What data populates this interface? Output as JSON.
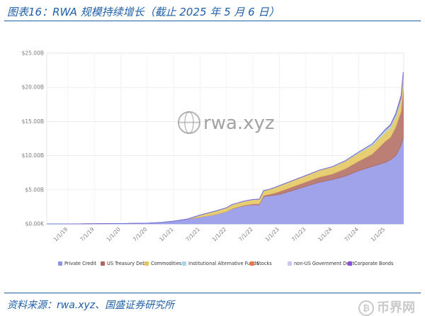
{
  "caption": "图表16：RWA 规模持续增长（截止 2025 年 5 月 6 日）",
  "source": "资料来源：rwa.xyz、国盛证券研究所",
  "watermark": {
    "logo_text": "rwa.xyz",
    "corner_text": "币界网",
    "corner_icon": "bitcoin-icon"
  },
  "colors": {
    "private_credit": "#8f93e6",
    "us_treasury": "#b0685e",
    "commodities": "#e3c45a",
    "institutional_funds": "#a8d7ec",
    "stocks": "#e8794b",
    "non_us_gov": "#c8c8ee",
    "corporate_bonds": "#8a4fd6",
    "caption_blue": "#1f5fa8"
  },
  "chart_data": {
    "type": "area",
    "stacked": true,
    "title": "",
    "xlabel": "",
    "ylabel": "",
    "ylim": [
      0,
      25
    ],
    "y_unit": "B USD",
    "y_ticks": [
      "$0.00K",
      "$5.00B",
      "$10.00B",
      "$15.00B",
      "$20.00B",
      "$25.00B"
    ],
    "y_tick_values": [
      0,
      5,
      10,
      15,
      20,
      25
    ],
    "x_ticks": [
      "1/1/19",
      "7/1/19",
      "1/1/20",
      "7/1/20",
      "1/1/21",
      "7/1/21",
      "1/1/22",
      "7/1/22",
      "1/1/23",
      "7/1/23",
      "1/1/24",
      "7/1/24",
      "1/1/25"
    ],
    "x_tick_values": [
      2019.0,
      2019.5,
      2020.0,
      2020.5,
      2021.0,
      2021.5,
      2022.0,
      2022.5,
      2023.0,
      2023.5,
      2024.0,
      2024.5,
      2025.0
    ],
    "xlim": [
      2018.6,
      2025.35
    ],
    "grid": true,
    "legend_position": "bottom",
    "x": [
      2018.6,
      2019.0,
      2019.5,
      2020.0,
      2020.5,
      2020.75,
      2021.0,
      2021.25,
      2021.5,
      2021.75,
      2022.0,
      2022.1,
      2022.2,
      2022.3,
      2022.4,
      2022.5,
      2022.62,
      2022.7,
      2022.8,
      2022.9,
      2023.0,
      2023.25,
      2023.5,
      2023.75,
      2024.0,
      2024.25,
      2024.5,
      2024.75,
      2025.0,
      2025.1,
      2025.2,
      2025.3,
      2025.34
    ],
    "series": [
      {
        "name": "Private Credit",
        "key": "private_credit",
        "values": [
          0,
          0,
          0.02,
          0.05,
          0.1,
          0.2,
          0.4,
          0.7,
          1.0,
          1.3,
          1.8,
          2.2,
          2.4,
          2.6,
          2.7,
          2.8,
          2.8,
          4.0,
          4.1,
          4.2,
          4.3,
          4.9,
          5.5,
          6.1,
          6.5,
          7.0,
          7.8,
          8.4,
          9.0,
          9.4,
          10.0,
          11.5,
          12.7
        ]
      },
      {
        "name": "US Treasury Debt",
        "key": "us_treasury",
        "values": [
          0,
          0,
          0,
          0,
          0,
          0,
          0,
          0,
          0,
          0,
          0.01,
          0.02,
          0.04,
          0.06,
          0.08,
          0.1,
          0.12,
          0.15,
          0.2,
          0.3,
          0.45,
          0.55,
          0.65,
          0.75,
          0.8,
          1.1,
          1.4,
          1.8,
          3.1,
          3.3,
          4.2,
          5.0,
          7.0
        ]
      },
      {
        "name": "Commodities",
        "key": "commodities",
        "values": [
          0,
          0,
          0,
          0,
          0,
          0,
          0,
          0,
          0.3,
          0.5,
          0.55,
          0.6,
          0.6,
          0.62,
          0.65,
          0.68,
          0.7,
          0.72,
          0.75,
          0.8,
          0.85,
          0.9,
          0.95,
          1.0,
          1.05,
          1.1,
          1.2,
          1.25,
          1.3,
          1.35,
          1.4,
          1.45,
          1.5
        ]
      },
      {
        "name": "Institutional Alternative Funds",
        "key": "institutional_funds",
        "values": [
          0,
          0,
          0,
          0,
          0,
          0,
          0,
          0,
          0,
          0,
          0,
          0,
          0,
          0,
          0,
          0,
          0,
          0,
          0,
          0,
          0,
          0,
          0,
          0,
          0.02,
          0.05,
          0.1,
          0.2,
          0.3,
          0.32,
          0.35,
          0.4,
          0.45
        ]
      },
      {
        "name": "Stocks",
        "key": "stocks",
        "values": [
          0,
          0,
          0,
          0,
          0,
          0,
          0,
          0,
          0,
          0,
          0,
          0,
          0,
          0,
          0,
          0,
          0,
          0,
          0,
          0,
          0,
          0,
          0,
          0,
          0,
          0,
          0,
          0,
          0.02,
          0.03,
          0.05,
          0.25,
          0.3
        ]
      },
      {
        "name": "non-US Government Debt",
        "key": "non_us_gov",
        "values": [
          0,
          0,
          0,
          0,
          0,
          0,
          0,
          0,
          0,
          0,
          0,
          0,
          0,
          0,
          0,
          0,
          0,
          0,
          0,
          0,
          0,
          0,
          0,
          0,
          0.01,
          0.02,
          0.03,
          0.04,
          0.05,
          0.05,
          0.06,
          0.06,
          0.06
        ]
      },
      {
        "name": "Corporate Bonds",
        "key": "corporate_bonds",
        "values": [
          0,
          0,
          0,
          0,
          0,
          0,
          0,
          0,
          0,
          0,
          0,
          0,
          0,
          0,
          0,
          0,
          0,
          0,
          0,
          0,
          0,
          0,
          0,
          0,
          0,
          0,
          0,
          0,
          0.05,
          0.07,
          0.1,
          0.15,
          0.2
        ]
      }
    ]
  }
}
